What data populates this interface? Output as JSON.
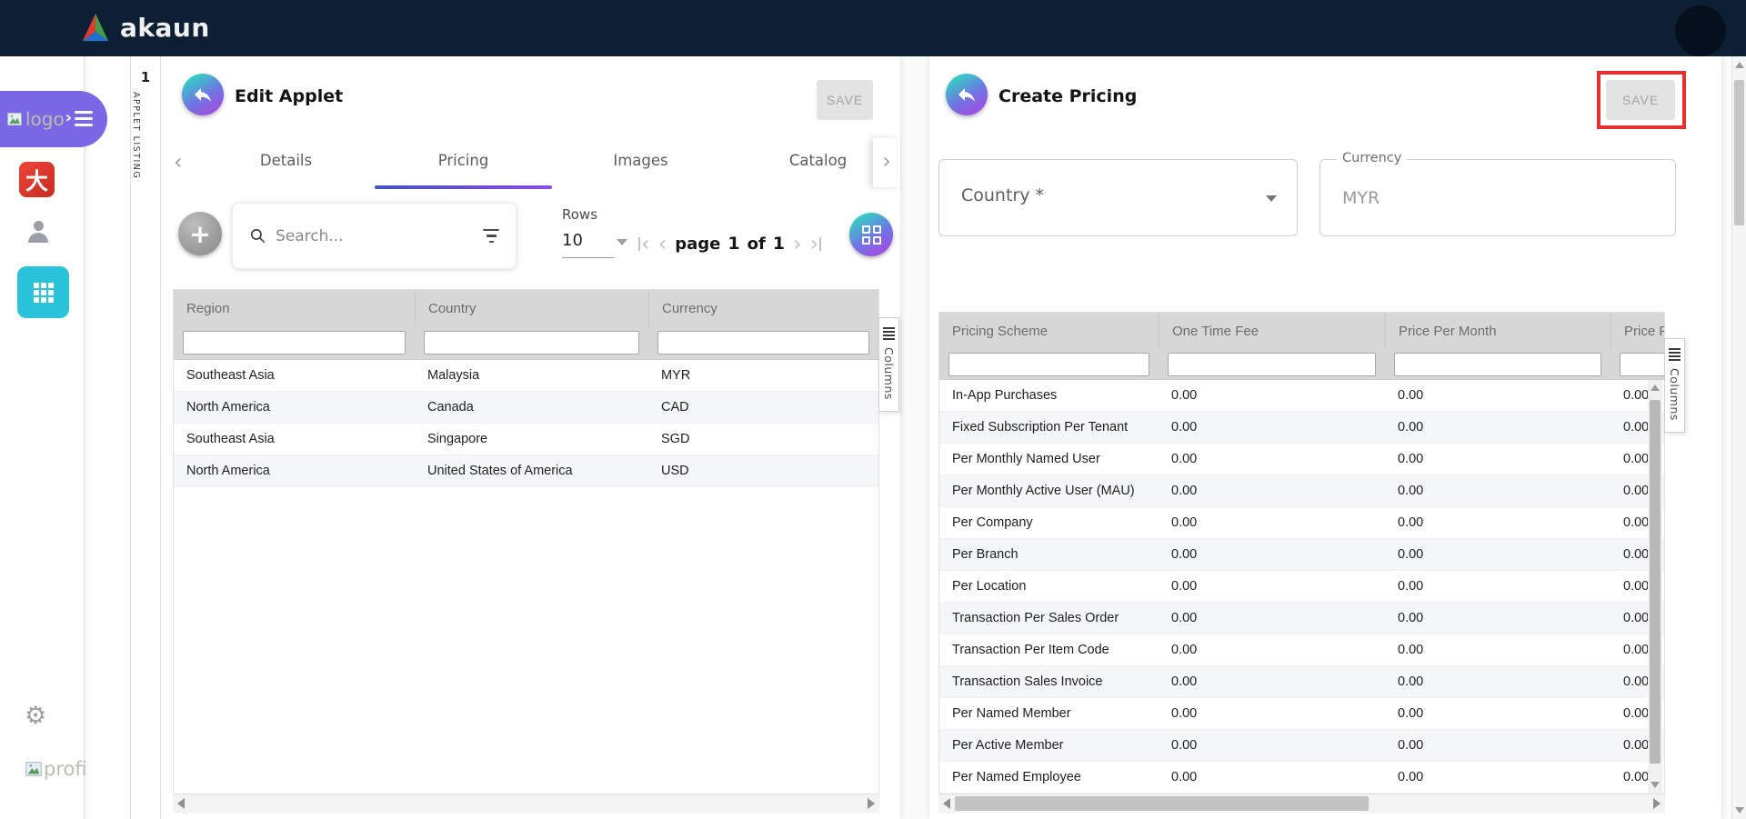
{
  "header": {
    "brand": "akaun"
  },
  "sidebar": {
    "logo_alt": "logo",
    "app_icon_char": "大",
    "profile_alt": "profi"
  },
  "applet_strip": {
    "number": "1",
    "label": "APPLET LISTING"
  },
  "icons": {
    "gear": "⚙",
    "plus": "+",
    "chevron_left": "‹",
    "chevron_right": "›"
  },
  "colors": {
    "header_bg": "#0c1f33",
    "gradient_start": "#2fd8c1",
    "gradient_end": "#a74ae1",
    "sidebar_cyan": "#2bc3da",
    "sidebar_purple": "#7a67e6",
    "highlight_red": "#e53230"
  },
  "left_panel": {
    "title": "Edit Applet",
    "save_label": "SAVE",
    "tabs": [
      "Details",
      "Pricing",
      "Images",
      "Catalog"
    ],
    "active_tab": "Pricing",
    "toolbar": {
      "search_placeholder": "Search...",
      "rows_label": "Rows",
      "rows_value": "10",
      "page_word": "page",
      "page_current": "1",
      "of_word": "of",
      "page_total": "1"
    },
    "table": {
      "columns": [
        "Region",
        "Country",
        "Currency"
      ],
      "rows": [
        [
          "Southeast Asia",
          "Malaysia",
          "MYR"
        ],
        [
          "North America",
          "Canada",
          "CAD"
        ],
        [
          "Southeast Asia",
          "Singapore",
          "SGD"
        ],
        [
          "North America",
          "United States of America",
          "USD"
        ]
      ],
      "columns_tab_label": "Columns"
    }
  },
  "right_panel": {
    "title": "Create Pricing",
    "save_label": "SAVE",
    "fields": {
      "country_label": "Country *",
      "currency_label": "Currency",
      "currency_value": "MYR"
    },
    "table": {
      "columns": [
        "Pricing Scheme",
        "One Time Fee",
        "Price Per Month",
        "Price Pe"
      ],
      "rows": [
        [
          "In-App Purchases",
          "0.00",
          "0.00",
          "0.00"
        ],
        [
          "Fixed Subscription Per Tenant",
          "0.00",
          "0.00",
          "0.00"
        ],
        [
          "Per Monthly Named User",
          "0.00",
          "0.00",
          "0.00"
        ],
        [
          "Per Monthly Active User (MAU)",
          "0.00",
          "0.00",
          "0.00"
        ],
        [
          "Per Company",
          "0.00",
          "0.00",
          "0.00"
        ],
        [
          "Per Branch",
          "0.00",
          "0.00",
          "0.00"
        ],
        [
          "Per Location",
          "0.00",
          "0.00",
          "0.00"
        ],
        [
          "Transaction Per Sales Order",
          "0.00",
          "0.00",
          "0.00"
        ],
        [
          "Transaction Per Item Code",
          "0.00",
          "0.00",
          "0.00"
        ],
        [
          "Transaction Sales Invoice",
          "0.00",
          "0.00",
          "0.00"
        ],
        [
          "Per Named Member",
          "0.00",
          "0.00",
          "0.00"
        ],
        [
          "Per Active Member",
          "0.00",
          "0.00",
          "0.00"
        ],
        [
          "Per Named Employee",
          "0.00",
          "0.00",
          "0.00"
        ]
      ],
      "columns_tab_label": "Columns"
    }
  }
}
